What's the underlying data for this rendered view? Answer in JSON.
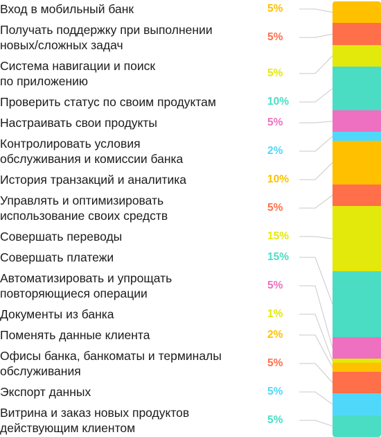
{
  "chart_data": {
    "type": "stacked-bar",
    "total": 100,
    "unit": "%",
    "series": [
      {
        "label": "Вход в мобильный банк",
        "value": 5,
        "display": "5%",
        "color": "#FFC000"
      },
      {
        "label": "Получать поддержку при выполнении\nновых/сложных задач",
        "value": 5,
        "display": "5%",
        "color": "#FF6F4A"
      },
      {
        "label": "Система навигации и поиск\nпо приложению",
        "value": 5,
        "display": "5%",
        "color": "#E3E90A"
      },
      {
        "label": "Проверить статус по своим продуктам",
        "value": 10,
        "display": "10%",
        "color": "#4BDDC4"
      },
      {
        "label": "Настраивать свои продукты",
        "value": 5,
        "display": "5%",
        "color": "#EE70C0"
      },
      {
        "label": "Контролировать условия\nобслуживания и комиссии банка",
        "value": 2,
        "display": "2%",
        "color": "#50D8FA"
      },
      {
        "label": "История транзакций и аналитика",
        "value": 10,
        "display": "10%",
        "color": "#FFC000"
      },
      {
        "label": "Управлять и оптимизировать\nиспользование своих средств",
        "value": 5,
        "display": "5%",
        "color": "#FF6F4A"
      },
      {
        "label": "Совершать переводы",
        "value": 15,
        "display": "15%",
        "color": "#E3E90A"
      },
      {
        "label": "Совершать платежи",
        "value": 15,
        "display": "15%",
        "color": "#4BDDC4"
      },
      {
        "label": "Автоматизировать и упрощать\nповторяющиеся операции",
        "value": 5,
        "display": "5%",
        "color": "#EE70C0"
      },
      {
        "label": "Документы из банка",
        "value": 1,
        "display": "1%",
        "color": "#E3E90A"
      },
      {
        "label": "Поменять данные клиента",
        "value": 2,
        "display": "2%",
        "color": "#FFC000"
      },
      {
        "label": "Офисы банка, банкоматы и терминалы\nобслуживания",
        "value": 5,
        "display": "5%",
        "color": "#FF6F4A"
      },
      {
        "label": "Экспорт данных",
        "value": 5,
        "display": "5%",
        "color": "#50D8FA"
      },
      {
        "label": "Витрина и заказ новых продуктов\nдействующим клиентом",
        "value": 5,
        "display": "5%",
        "color": "#4BDDC4"
      }
    ]
  }
}
